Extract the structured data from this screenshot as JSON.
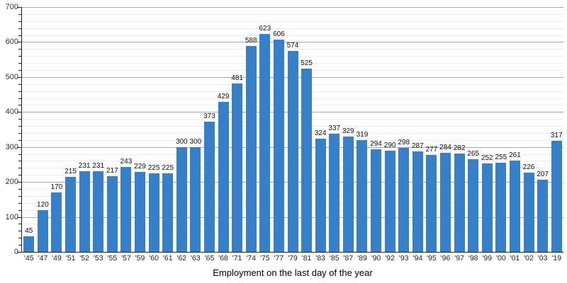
{
  "chart_data": {
    "type": "bar",
    "title": "",
    "xlabel": "Employment on the last day of the year",
    "ylabel": "",
    "categories": [
      "'45",
      "'47",
      "'49",
      "'51",
      "'52",
      "'53",
      "'55",
      "'57",
      "'59",
      "'60",
      "'61",
      "'62",
      "'63",
      "'65",
      "'68",
      "'71",
      "'74",
      "'75",
      "'77",
      "'79",
      "'81",
      "'83",
      "'85",
      "'87",
      "'89",
      "'90",
      "'92",
      "'93",
      "'94",
      "'95",
      "'96",
      "'97",
      "'98",
      "'99",
      "'00",
      "'01",
      "'02",
      "'03",
      "'19"
    ],
    "values": [
      45,
      120,
      170,
      215,
      231,
      231,
      217,
      243,
      229,
      225,
      225,
      300,
      300,
      373,
      429,
      481,
      588,
      623,
      606,
      574,
      525,
      324,
      337,
      329,
      319,
      294,
      290,
      298,
      287,
      277,
      284,
      282,
      265,
      252,
      255,
      261,
      226,
      207,
      317
    ],
    "ylim": [
      0,
      700
    ],
    "y_major_step": 100,
    "y_minor_step": 20,
    "y_tick_labels": [
      "0",
      "100",
      "200",
      "300",
      "400",
      "500",
      "600",
      "700"
    ],
    "grid": "on",
    "legend": "none",
    "data_labels": "on",
    "bar_color": "#3580c8",
    "grid_major_color": "#a9a9a9",
    "grid_minor_color": "#ececec",
    "axis_color": "#222222",
    "background_color": "#ffffff"
  }
}
